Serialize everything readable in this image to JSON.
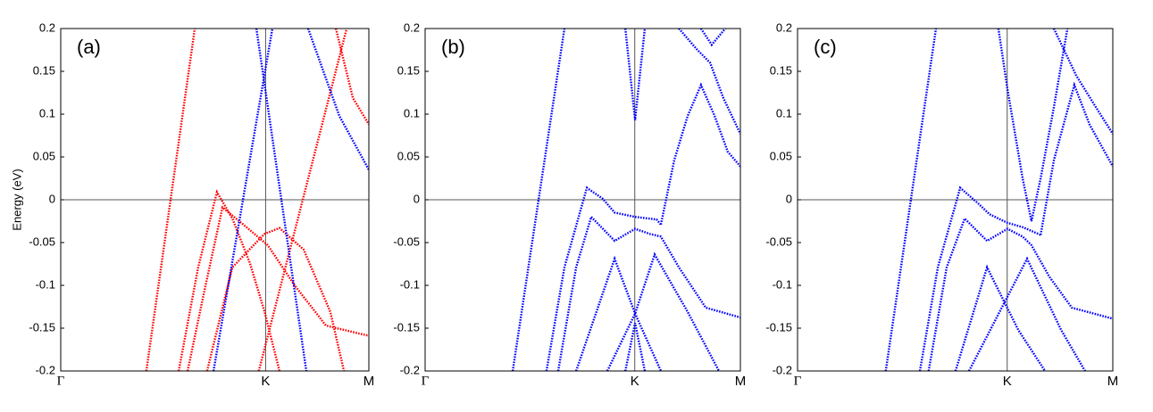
{
  "chart_data": [
    {
      "type": "line",
      "title": "(a)",
      "ylabel": "Energy (eV)",
      "dotted": true,
      "xlim": [
        0,
        1
      ],
      "xticks": [
        {
          "value": 0,
          "label": "Γ"
        },
        {
          "value": 0.665,
          "label": "K"
        },
        {
          "value": 1,
          "label": "M"
        }
      ],
      "ylim": [
        -0.2,
        0.2
      ],
      "yticks": [
        -0.2,
        -0.15,
        -0.1,
        -0.05,
        0,
        0.05,
        0.1,
        0.15,
        0.2
      ],
      "series": [
        {
          "color": "#ff0000",
          "x": [
            0.278,
            0.435
          ],
          "values": [
            -0.2,
            0.2
          ]
        },
        {
          "color": "#ff0000",
          "x": [
            0.383,
            0.446,
            0.507,
            0.557,
            0.614,
            0.661,
            0.71
          ],
          "values": [
            -0.2,
            -0.079,
            0.009,
            -0.022,
            -0.074,
            -0.13,
            -0.2
          ]
        },
        {
          "color": "#ff0000",
          "x": [
            0.412,
            0.464,
            0.525,
            0.586,
            0.672,
            0.759,
            0.861,
            1
          ],
          "values": [
            -0.2,
            -0.11,
            -0.009,
            -0.027,
            -0.053,
            -0.1,
            -0.147,
            -0.159
          ]
        },
        {
          "color": "#ff0000",
          "x": [
            0.475,
            0.557,
            0.661,
            0.71,
            0.788,
            0.875,
            0.919
          ],
          "values": [
            -0.2,
            -0.079,
            -0.04,
            -0.033,
            -0.058,
            -0.131,
            -0.2
          ]
        },
        {
          "color": "#ff0000",
          "x": [
            0.643,
            0.928
          ],
          "values": [
            -0.2,
            0.2
          ]
        },
        {
          "color": "#ff0000",
          "x": [
            0.893,
            0.948,
            1
          ],
          "values": [
            0.2,
            0.119,
            0.088
          ]
        },
        {
          "color": "#0000ff",
          "x": [
            0.635,
            0.797
          ],
          "values": [
            0.2,
            -0.2
          ]
        },
        {
          "color": "#0000ff",
          "x": [
            0.496,
            0.687
          ],
          "values": [
            -0.2,
            0.2
          ]
        },
        {
          "color": "#0000ff",
          "x": [
            0.803,
            0.904,
            1
          ],
          "values": [
            0.2,
            0.098,
            0.035
          ]
        }
      ]
    },
    {
      "type": "line",
      "title": "(b)",
      "dotted": true,
      "xlim": [
        0,
        1
      ],
      "xticks": [
        {
          "value": 0,
          "label": "Γ"
        },
        {
          "value": 0.665,
          "label": "K"
        },
        {
          "value": 1,
          "label": "M"
        }
      ],
      "ylim": [
        -0.2,
        0.2
      ],
      "yticks": [
        -0.2,
        -0.15,
        -0.1,
        -0.05,
        0,
        0.05,
        0.1,
        0.15,
        0.2
      ],
      "series": [
        {
          "color": "#0000ff",
          "x": [
            0.278,
            0.442
          ],
          "values": [
            -0.2,
            0.2
          ]
        },
        {
          "color": "#0000ff",
          "x": [
            0.385,
            0.442,
            0.513,
            0.564,
            0.601,
            0.666,
            0.734,
            0.748
          ],
          "values": [
            -0.2,
            -0.079,
            0.014,
            0.001,
            -0.015,
            -0.02,
            -0.023,
            -0.029
          ]
        },
        {
          "color": "#0000ff",
          "x": [
            0.748,
            0.79,
            0.833,
            0.875,
            0.918,
            0.96,
            1
          ],
          "values": [
            -0.029,
            0.046,
            0.098,
            0.134,
            0.098,
            0.056,
            0.039
          ]
        },
        {
          "color": "#0000ff",
          "x": [
            0.805,
            0.861,
            0.904,
            0.946,
            1
          ],
          "values": [
            0.2,
            0.176,
            0.16,
            0.119,
            0.077
          ]
        },
        {
          "color": "#0000ff",
          "x": [
            0.875,
            0.909,
            0.952
          ],
          "values": [
            0.2,
            0.181,
            0.2
          ]
        },
        {
          "color": "#0000ff",
          "x": [
            0.422,
            0.479,
            0.527,
            0.601,
            0.666,
            0.714,
            0.748,
            0.805,
            0.89,
            1
          ],
          "values": [
            -0.2,
            -0.079,
            -0.02,
            -0.048,
            -0.034,
            -0.04,
            -0.043,
            -0.079,
            -0.126,
            -0.1375
          ]
        },
        {
          "color": "#0000ff",
          "x": [
            0.479,
            0.601,
            0.666,
            0.748
          ],
          "values": [
            -0.2,
            -0.069,
            -0.133,
            -0.2
          ]
        },
        {
          "color": "#0000ff",
          "x": [
            0.578,
            0.666,
            0.728,
            0.833,
            0.932
          ],
          "values": [
            -0.2,
            -0.133,
            -0.064,
            -0.131,
            -0.2
          ]
        },
        {
          "color": "#0000ff",
          "x": [
            0.635,
            0.666,
            0.697
          ],
          "values": [
            -0.2,
            -0.144,
            -0.2
          ]
        },
        {
          "color": "#0000ff",
          "x": [
            0.635,
            0.666,
            0.697
          ],
          "values": [
            0.2,
            0.093,
            0.2
          ]
        }
      ]
    },
    {
      "type": "line",
      "title": "(c)",
      "dotted": true,
      "xlim": [
        0,
        1
      ],
      "xticks": [
        {
          "value": 0,
          "label": "Γ"
        },
        {
          "value": 0.665,
          "label": "K"
        },
        {
          "value": 1,
          "label": "M"
        }
      ],
      "ylim": [
        -0.2,
        0.2
      ],
      "yticks": [
        -0.2,
        -0.15,
        -0.1,
        -0.05,
        0,
        0.05,
        0.1,
        0.15,
        0.2
      ],
      "series": [
        {
          "color": "#0000ff",
          "x": [
            0.28,
            0.439
          ],
          "values": [
            -0.2,
            0.2
          ]
        },
        {
          "color": "#0000ff",
          "x": [
            0.388,
            0.445,
            0.516,
            0.572,
            0.609,
            0.666,
            0.714,
            0.771
          ],
          "values": [
            -0.2,
            -0.079,
            0.014,
            -0.004,
            -0.017,
            -0.027,
            -0.032,
            -0.041
          ]
        },
        {
          "color": "#0000ff",
          "x": [
            0.637,
            0.666,
            0.714,
            0.742,
            0.771,
            0.813,
            0.856
          ],
          "values": [
            0.2,
            0.129,
            0.025,
            -0.025,
            0.025,
            0.108,
            0.2
          ]
        },
        {
          "color": "#0000ff",
          "x": [
            0.771,
            0.813,
            0.878,
            0.926,
            1
          ],
          "values": [
            -0.041,
            0.046,
            0.134,
            0.088,
            0.039
          ]
        },
        {
          "color": "#0000ff",
          "x": [
            0.813,
            0.884,
            0.955,
            1
          ],
          "values": [
            0.2,
            0.145,
            0.103,
            0.077
          ]
        },
        {
          "color": "#0000ff",
          "x": [
            0.416,
            0.473,
            0.53,
            0.601,
            0.666,
            0.714,
            0.742,
            0.799,
            0.87,
            1
          ],
          "values": [
            -0.2,
            -0.079,
            -0.022,
            -0.048,
            -0.034,
            -0.043,
            -0.053,
            -0.09,
            -0.126,
            -0.139
          ]
        },
        {
          "color": "#0000ff",
          "x": [
            0.501,
            0.601,
            0.7,
            0.785
          ],
          "values": [
            -0.2,
            -0.079,
            -0.152,
            -0.2
          ]
        },
        {
          "color": "#0000ff",
          "x": [
            0.544,
            0.728,
            0.836,
            0.912
          ],
          "values": [
            -0.2,
            -0.069,
            -0.152,
            -0.2
          ]
        }
      ]
    }
  ]
}
